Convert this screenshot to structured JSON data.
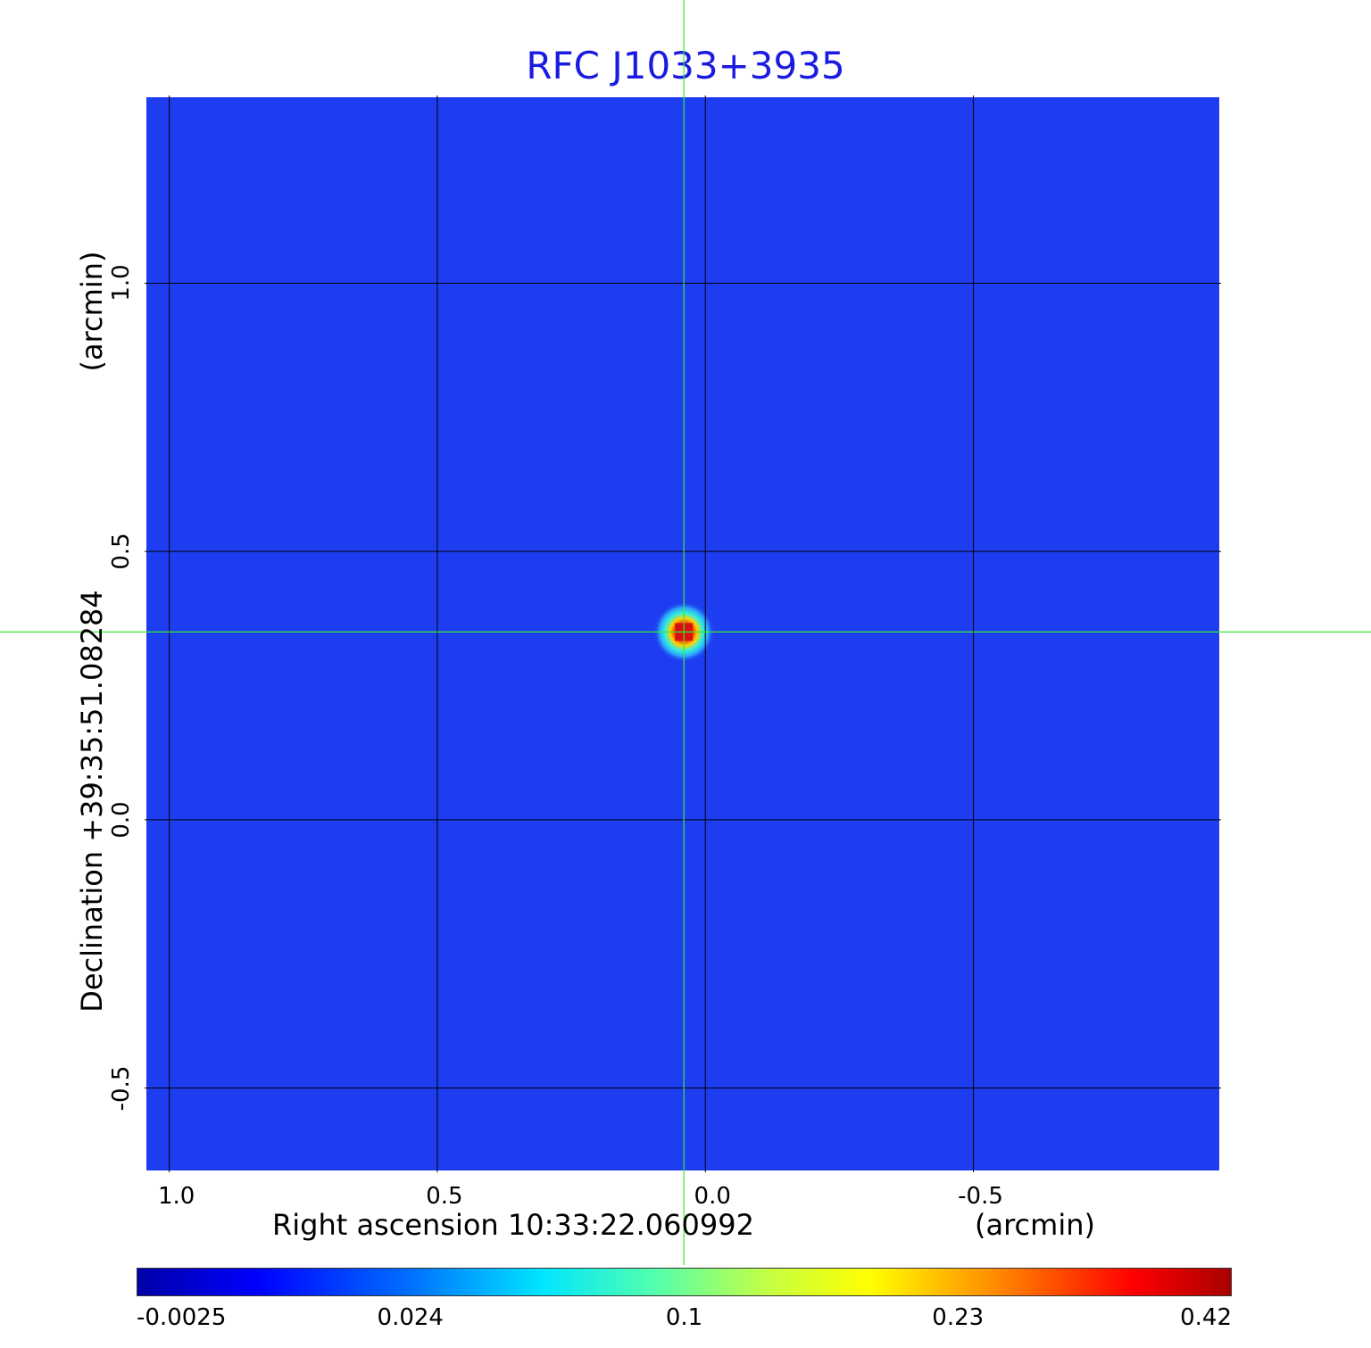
{
  "chart_data": {
    "type": "heatmap",
    "title": "RFC J1033+3935",
    "xlabel": "Right ascension  10:33:22.060992",
    "xunit": "(arcmin)",
    "ylabel": "Declination  +39:35:51.08284",
    "yunit": "(arcmin)",
    "x_ticks": [
      "1.0",
      "0.5",
      "0.0",
      "-0.5"
    ],
    "y_ticks": [
      "1.0",
      "0.5",
      "0.0",
      "-0.5"
    ],
    "x_tick_values": [
      1.0,
      0.5,
      0.0,
      -0.5
    ],
    "y_tick_values": [
      1.0,
      0.5,
      0.0,
      -0.5
    ],
    "xlim": [
      1.046,
      -0.962
    ],
    "ylim": [
      -0.657,
      1.35
    ],
    "grid": true,
    "crosshair": {
      "x": 0.04,
      "y": 0.35
    },
    "source": {
      "x": 0.04,
      "y": 0.35,
      "peak": 0.42
    },
    "colorbar": {
      "ticks": [
        "-0.0025",
        "0.024",
        "0.1",
        "0.23",
        "0.42"
      ],
      "range": [
        -0.0025,
        0.42
      ],
      "colormap": "jet"
    }
  },
  "colors": {
    "title": "#1a1ae0",
    "background_map": "#1e3df0",
    "grid": "#000000",
    "crosshair": "#33ee33"
  }
}
